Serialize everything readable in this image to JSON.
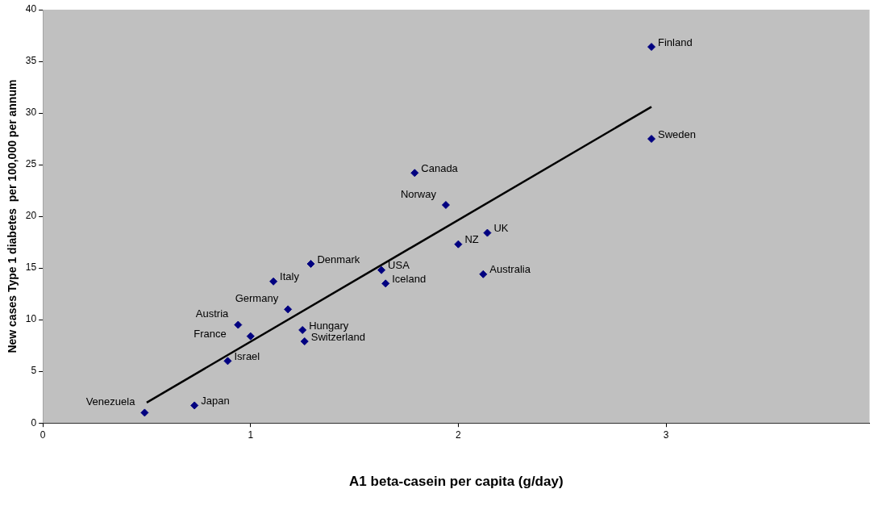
{
  "chart_data": {
    "type": "scatter",
    "xlabel": "A1 beta-casein per capita (g/day)",
    "ylabel": "New cases Type 1 diabetes  per 100,000 per annum",
    "xlim": [
      0,
      3.98
    ],
    "xticks": [
      0,
      1,
      2,
      3
    ],
    "ylim": [
      0,
      40
    ],
    "yticks": [
      0,
      5,
      10,
      15,
      20,
      25,
      30,
      35,
      40
    ],
    "grid": false,
    "legend": false,
    "marker": "diamond",
    "series": [
      {
        "color": "#000080",
        "x": [
          2.93,
          2.93,
          1.79,
          1.94,
          2.14,
          2.0,
          2.12,
          1.29,
          1.63,
          1.65,
          1.11,
          1.18,
          1.25,
          1.26,
          0.94,
          1.0,
          0.89,
          0.73,
          0.49
        ],
        "values": [
          36.4,
          27.5,
          24.2,
          21.1,
          18.4,
          17.3,
          14.4,
          15.4,
          14.8,
          13.5,
          13.7,
          11.0,
          9.0,
          7.9,
          9.5,
          8.4,
          6.0,
          1.7,
          1.0
        ]
      },
      {
        "type": "line",
        "color": "#000000",
        "marker": "none",
        "x": [
          0.5,
          2.93
        ],
        "values": [
          1.98,
          30.6
        ]
      }
    ],
    "annotations": [
      {
        "text": "Finland",
        "x": 2.93,
        "y": 36.4
      },
      {
        "text": "Sweden",
        "x": 2.93,
        "y": 27.5
      },
      {
        "text": "Canada",
        "x": 1.79,
        "y": 24.2
      },
      {
        "text": "Norway",
        "x": 1.94,
        "y": 21.1
      },
      {
        "text": "UK",
        "x": 2.14,
        "y": 18.4
      },
      {
        "text": "NZ",
        "x": 2.0,
        "y": 17.3
      },
      {
        "text": "Australia",
        "x": 2.12,
        "y": 14.4
      },
      {
        "text": "Denmark",
        "x": 1.29,
        "y": 15.4
      },
      {
        "text": "USA",
        "x": 1.63,
        "y": 14.8
      },
      {
        "text": "Iceland",
        "x": 1.65,
        "y": 13.5
      },
      {
        "text": "Italy",
        "x": 1.11,
        "y": 13.7
      },
      {
        "text": "Germany",
        "x": 1.18,
        "y": 11.0
      },
      {
        "text": "Hungary",
        "x": 1.25,
        "y": 9.0
      },
      {
        "text": "Switzerland",
        "x": 1.26,
        "y": 7.9
      },
      {
        "text": "Austria",
        "x": 0.94,
        "y": 9.5
      },
      {
        "text": "France",
        "x": 1.0,
        "y": 8.4
      },
      {
        "text": "Israel",
        "x": 0.89,
        "y": 6.0
      },
      {
        "text": "Japan",
        "x": 0.73,
        "y": 1.7
      },
      {
        "text": "Venezuela",
        "x": 0.49,
        "y": 1.0
      }
    ]
  }
}
